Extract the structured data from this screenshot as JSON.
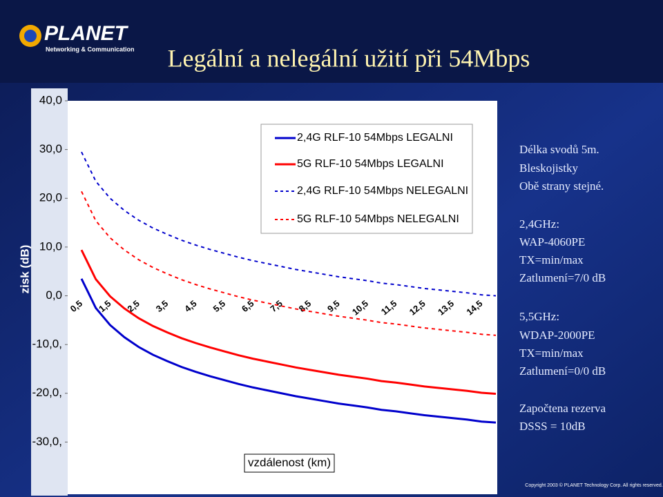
{
  "logo": {
    "name": "PLANET",
    "tagline": "Networking & Communication"
  },
  "footer": "Copyright 2003 © PLANET Technology Corp. All rights reserved.",
  "chart_data": {
    "type": "line",
    "title": "Legální a nelegální užití při 54Mbps",
    "y_label": "zisk (dB)",
    "x_label": "vzdálenost (km)",
    "categories": [
      "0,5",
      null,
      "1,5",
      null,
      "2,5",
      null,
      "3,5",
      null,
      "4,5",
      null,
      "5,5",
      null,
      "6,5",
      null,
      "7,5",
      null,
      "8,5",
      null,
      "9,5",
      null,
      "10,5",
      null,
      "11,5",
      null,
      "12,5",
      null,
      "13,5",
      null,
      "14,5",
      null
    ],
    "ylim": [
      -40,
      40
    ],
    "yticks": [
      {
        "value": 40,
        "label": "40,0"
      },
      {
        "value": 30,
        "label": "30,0"
      },
      {
        "value": 20,
        "label": "20,0"
      },
      {
        "value": 10,
        "label": "10,0"
      },
      {
        "value": 0,
        "label": "0,0"
      },
      {
        "value": -10,
        "label": "-10,0,"
      },
      {
        "value": -20,
        "label": "-20,0,"
      },
      {
        "value": -30,
        "label": "-30,0,"
      }
    ],
    "grid": false,
    "series": [
      {
        "name": "2,4G RLF-10 54Mbps LEGALNI",
        "color": "#0000cc",
        "dashed": false,
        "values": [
          3.5,
          -2.5,
          -6.0,
          -8.5,
          -10.5,
          -12.1,
          -13.4,
          -14.6,
          -15.6,
          -16.5,
          -17.3,
          -18.1,
          -18.8,
          -19.4,
          -20.0,
          -20.6,
          -21.1,
          -21.6,
          -22.1,
          -22.5,
          -22.9,
          -23.4,
          -23.7,
          -24.1,
          -24.5,
          -24.8,
          -25.1,
          -25.4,
          -25.8,
          -26.0
        ]
      },
      {
        "name": "5G RLF-10 54Mbps LEGALNI",
        "color": "#ff0000",
        "dashed": false,
        "values": [
          9.4,
          3.4,
          -0.1,
          -2.6,
          -4.6,
          -6.2,
          -7.5,
          -8.7,
          -9.7,
          -10.6,
          -11.4,
          -12.2,
          -12.9,
          -13.5,
          -14.1,
          -14.7,
          -15.2,
          -15.7,
          -16.2,
          -16.6,
          -17.0,
          -17.5,
          -17.8,
          -18.2,
          -18.6,
          -18.9,
          -19.2,
          -19.5,
          -19.9,
          -20.1
        ]
      },
      {
        "name": "2,4G RLF-10 54Mbps NELEGALNI",
        "color": "#0000cc",
        "dashed": true,
        "values": [
          29.5,
          23.5,
          20.0,
          17.5,
          15.5,
          13.9,
          12.6,
          11.4,
          10.4,
          9.5,
          8.7,
          7.9,
          7.2,
          6.6,
          6.0,
          5.4,
          4.9,
          4.4,
          3.9,
          3.5,
          3.1,
          2.6,
          2.3,
          1.9,
          1.5,
          1.2,
          0.9,
          0.6,
          0.2,
          0.0
        ]
      },
      {
        "name": "5G RLF-10 54Mbps NELEGALNI",
        "color": "#ff0000",
        "dashed": true,
        "values": [
          21.4,
          15.4,
          11.9,
          9.4,
          7.4,
          5.8,
          4.5,
          3.3,
          2.3,
          1.4,
          0.6,
          -0.2,
          -0.9,
          -1.5,
          -2.1,
          -2.7,
          -3.2,
          -3.7,
          -4.2,
          -4.6,
          -5.0,
          -5.5,
          -5.8,
          -6.2,
          -6.6,
          -6.9,
          -7.2,
          -7.5,
          -7.9,
          -8.1
        ]
      }
    ],
    "annotations": [
      "Délka svodů 5m.",
      "Bleskojistky",
      "Obě strany stejné.",
      "2,4GHz:",
      "WAP-4060PE",
      "TX=min/max",
      "Zatlumení=7/0 dB",
      "5,5GHz:",
      "WDAP-2000PE",
      "TX=min/max",
      "Zatlumení=0/0 dB",
      "Započtena rezerva",
      "DSSS = 10dB"
    ]
  }
}
